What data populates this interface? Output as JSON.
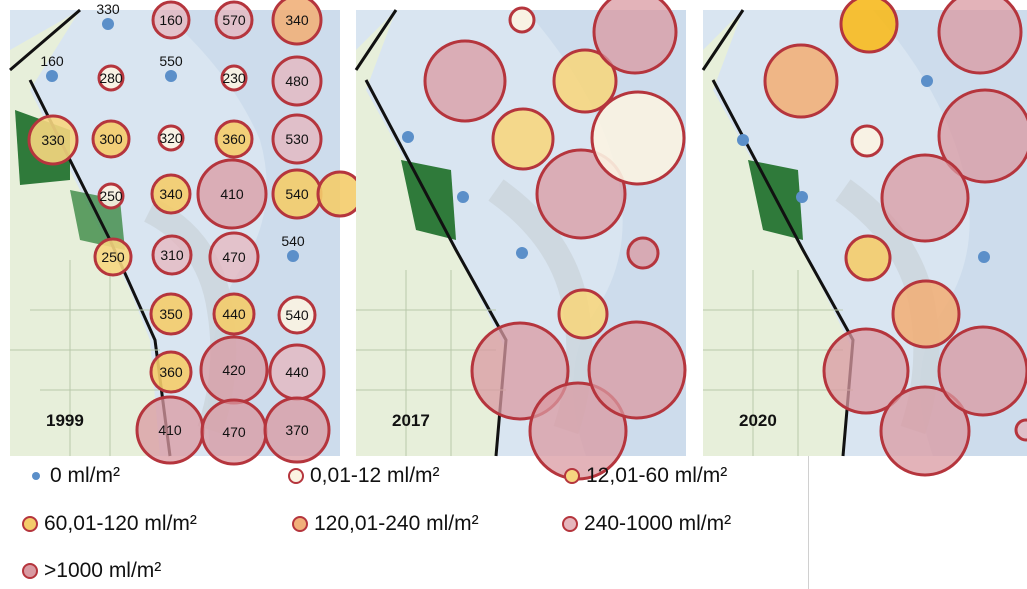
{
  "panels": [
    {
      "year": "1999",
      "circles": [
        {
          "cls": "c0",
          "value": "330"
        },
        {
          "cls": "c5",
          "value": "160"
        },
        {
          "cls": "c5",
          "value": "570"
        },
        {
          "cls": "c4",
          "value": "340"
        },
        {
          "cls": "c0",
          "value": "160"
        },
        {
          "cls": "c1",
          "value": "280"
        },
        {
          "cls": "c0",
          "value": "550"
        },
        {
          "cls": "c1",
          "value": "230"
        },
        {
          "cls": "c5",
          "value": "480"
        },
        {
          "cls": "c2",
          "value": "330"
        },
        {
          "cls": "c3",
          "value": "300"
        },
        {
          "cls": "c1",
          "value": "320"
        },
        {
          "cls": "c3",
          "value": "360"
        },
        {
          "cls": "c5",
          "value": "530"
        },
        {
          "cls": "c1",
          "value": "250"
        },
        {
          "cls": "c3",
          "value": "340"
        },
        {
          "cls": "c6",
          "value": "410"
        },
        {
          "cls": "c3",
          "value": "540"
        },
        {
          "cls": "c2",
          "value": "250"
        },
        {
          "cls": "c5",
          "value": "310"
        },
        {
          "cls": "c5",
          "value": "470"
        },
        {
          "cls": "c0",
          "value": "540"
        },
        {
          "cls": "c3",
          "value": "350"
        },
        {
          "cls": "c3",
          "value": "440"
        },
        {
          "cls": "c1",
          "value": "540"
        },
        {
          "cls": "c3",
          "value": "360"
        },
        {
          "cls": "c6",
          "value": "420"
        },
        {
          "cls": "c5",
          "value": "440"
        },
        {
          "cls": "c6",
          "value": "410"
        },
        {
          "cls": "c6",
          "value": "470"
        },
        {
          "cls": "c6",
          "value": "370"
        },
        {
          "cls": "c3",
          "value": ""
        }
      ]
    },
    {
      "year": "2017",
      "circles": [
        {
          "cls": "c1",
          "value": ""
        },
        {
          "cls": "c6",
          "value": ""
        },
        {
          "cls": "c2",
          "value": ""
        },
        {
          "cls": "c2",
          "value": ""
        },
        {
          "cls": "c6",
          "value": ""
        },
        {
          "cls": "c6",
          "value": ""
        },
        {
          "cls": "c1",
          "value": ""
        },
        {
          "cls": "c0",
          "value": ""
        },
        {
          "cls": "c0",
          "value": ""
        },
        {
          "cls": "c0",
          "value": ""
        },
        {
          "cls": "c2",
          "value": ""
        },
        {
          "cls": "c6",
          "value": ""
        },
        {
          "cls": "c6",
          "value": ""
        },
        {
          "cls": "c6",
          "value": ""
        },
        {
          "cls": "c6",
          "value": ""
        }
      ]
    },
    {
      "year": "2020",
      "circles": [
        {
          "cls": "c3x",
          "value": ""
        },
        {
          "cls": "c4",
          "value": ""
        },
        {
          "cls": "c6",
          "value": ""
        },
        {
          "cls": "c6",
          "value": ""
        },
        {
          "cls": "c6",
          "value": ""
        },
        {
          "cls": "c1",
          "value": ""
        },
        {
          "cls": "c0",
          "value": ""
        },
        {
          "cls": "c0",
          "value": ""
        },
        {
          "cls": "c0",
          "value": ""
        },
        {
          "cls": "c3",
          "value": ""
        },
        {
          "cls": "c4",
          "value": ""
        },
        {
          "cls": "c6",
          "value": ""
        },
        {
          "cls": "c6",
          "value": ""
        },
        {
          "cls": "c6",
          "value": ""
        },
        {
          "cls": "c5",
          "value": ""
        },
        {
          "cls": "c0",
          "value": ""
        }
      ]
    }
  ],
  "legend": [
    {
      "cls": "c0",
      "label": "0 ml/m²"
    },
    {
      "cls": "c1",
      "label": "0,01-12 ml/m²"
    },
    {
      "cls": "c2",
      "label": "12,01-60 ml/m²"
    },
    {
      "cls": "c3",
      "label": "60,01-120 ml/m²"
    },
    {
      "cls": "c4",
      "label": "120,01-240 ml/m²"
    },
    {
      "cls": "c5",
      "label": "240-1000 ml/m²"
    },
    {
      "cls": "c6",
      "label": ">1000 ml/m²"
    }
  ],
  "colors": {
    "water": "#d9e5f1",
    "water_dark": "#b9cde2",
    "land": "#e7efda",
    "land_green": "#2f7a3a",
    "border": "#b5353d",
    "dot": "#5b8fc9",
    "c1": "#fbf3e2",
    "c2": "#f6d680",
    "c3": "#f4cc6a",
    "c3x": "#f7ba1f",
    "c4": "#f1b07a",
    "c5": "#e6b6bd",
    "c6": "#d99aa2"
  }
}
